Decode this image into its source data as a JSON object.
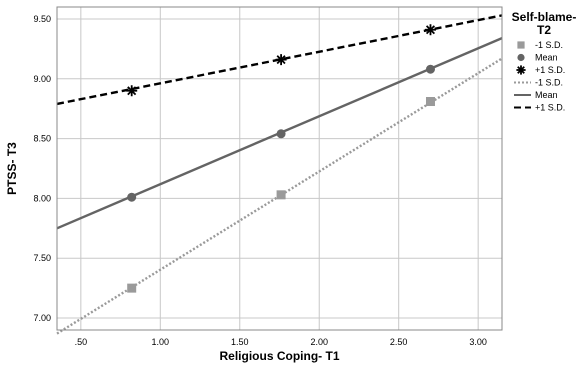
{
  "chart_data": {
    "type": "line",
    "xlabel": "Religious Coping- T1",
    "ylabel": "PTSS- T3",
    "xlim": [
      0.35,
      3.15
    ],
    "ylim": [
      6.9,
      9.6
    ],
    "xticks": [
      ".50",
      "1.00",
      "1.50",
      "2.00",
      "2.50",
      "3.00"
    ],
    "xtick_values": [
      0.5,
      1.0,
      1.5,
      2.0,
      2.5,
      3.0
    ],
    "yticks": [
      "7.00",
      "7.50",
      "8.00",
      "8.50",
      "9.00",
      "9.50"
    ],
    "ytick_values": [
      7.0,
      7.5,
      8.0,
      8.5,
      9.0,
      9.5
    ],
    "grid": true,
    "legend_title": "Self-blame-\nT2",
    "legend_title_lines": [
      "Self-blame-",
      "T2"
    ],
    "legend_position": "right",
    "markers": [
      {
        "name": "-1  S.D.",
        "symbol": "square",
        "color": "#9a9a9a",
        "x": [
          0.82,
          1.76,
          2.7
        ],
        "y": [
          7.25,
          8.03,
          8.81
        ]
      },
      {
        "name": "Mean",
        "symbol": "circle",
        "color": "#646464",
        "x": [
          0.82,
          1.76,
          2.7
        ],
        "y": [
          8.01,
          8.54,
          9.08
        ]
      },
      {
        "name": "+1  S.D.",
        "symbol": "star",
        "color": "#000000",
        "x": [
          0.82,
          1.76,
          2.7
        ],
        "y": [
          8.9,
          9.16,
          9.41
        ]
      }
    ],
    "lines": [
      {
        "name": "-1  S.D.",
        "style": "dotted",
        "color": "#9a9a9a",
        "x": [
          0.35,
          3.15
        ],
        "y": [
          6.87,
          9.17
        ]
      },
      {
        "name": "Mean",
        "style": "solid",
        "color": "#646464",
        "x": [
          0.35,
          3.15
        ],
        "y": [
          7.75,
          9.34
        ]
      },
      {
        "name": "+1  S.D.",
        "style": "dashed",
        "color": "#000000",
        "x": [
          0.35,
          3.15
        ],
        "y": [
          8.79,
          9.53
        ]
      }
    ]
  }
}
